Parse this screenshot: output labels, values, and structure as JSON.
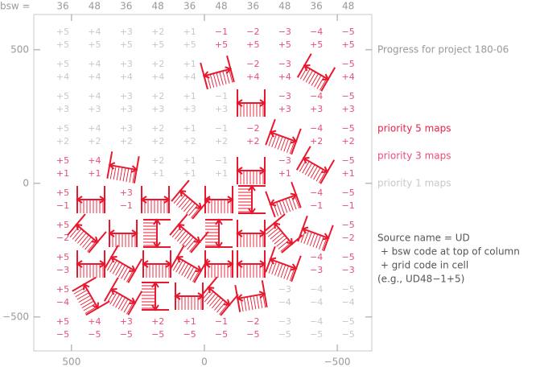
{
  "chart_data": {
    "type": "grid-map",
    "bsw_label": "bsw =",
    "column_codes": [
      36,
      48,
      36,
      48,
      36,
      48,
      36,
      48,
      36,
      48
    ],
    "xlim": [
      642,
      -630
    ],
    "ylim": [
      -627,
      632
    ],
    "xticks": [
      500,
      0,
      {
        "value": -500,
        "label": "−500"
      }
    ],
    "yticks": [
      {
        "value": -500,
        "label": "−500"
      },
      0,
      500
    ],
    "legend": [
      {
        "text": "Progress for project 180-06",
        "color": "#999999"
      },
      {
        "text": "priority 5 maps",
        "color": "#e8204a"
      },
      {
        "text": "priority 3 maps",
        "color": "#ec4c78"
      },
      {
        "text": "priority 1 maps",
        "color": "#c8c8c8"
      }
    ],
    "notes": [
      "Source name = UD",
      " + bsw code at top of column",
      " + grid code in cell",
      "(e.g., UD48−1+5)"
    ],
    "cells": [
      [
        {
          "lines": [
            "+5",
            "+5"
          ],
          "color": "#c8c8c8"
        },
        {
          "lines": [
            "+4",
            "+5"
          ],
          "color": "#c8c8c8"
        },
        {
          "lines": [
            "+3",
            "+5"
          ],
          "color": "#c8c8c8"
        },
        {
          "lines": [
            "+2",
            "+5"
          ],
          "color": "#c8c8c8"
        },
        {
          "lines": [
            "+1",
            "+5"
          ],
          "color": "#c8c8c8"
        },
        {
          "lines": [
            "−1",
            "+5"
          ],
          "color": "#ec4c78"
        },
        {
          "lines": [
            "−2",
            "+5"
          ],
          "color": "#ec4c78"
        },
        {
          "lines": [
            "−3",
            "+5"
          ],
          "color": "#ec4c78"
        },
        {
          "lines": [
            "−4",
            "+5"
          ],
          "color": "#ec4c78"
        },
        {
          "lines": [
            "−5",
            "+5"
          ],
          "color": "#ec4c78"
        }
      ],
      [
        {
          "lines": [
            "+5",
            "+4"
          ],
          "color": "#c8c8c8"
        },
        {
          "lines": [
            "+4",
            "+4"
          ],
          "color": "#c8c8c8"
        },
        {
          "lines": [
            "+3",
            "+4"
          ],
          "color": "#c8c8c8"
        },
        {
          "lines": [
            "+2",
            "+4"
          ],
          "color": "#c8c8c8"
        },
        {
          "lines": [
            "+1",
            "+4"
          ],
          "color": "#c8c8c8"
        },
        null,
        {
          "lines": [
            "−2",
            "+4"
          ],
          "color": "#ec4c78"
        },
        {
          "lines": [
            "−3",
            "+4"
          ],
          "color": "#ec4c78"
        },
        null,
        {
          "lines": [
            "−5",
            "+4"
          ],
          "color": "#ec4c78"
        }
      ],
      [
        {
          "lines": [
            "+5",
            "+3"
          ],
          "color": "#c8c8c8"
        },
        {
          "lines": [
            "+4",
            "+3"
          ],
          "color": "#c8c8c8"
        },
        {
          "lines": [
            "+3",
            "+3"
          ],
          "color": "#c8c8c8"
        },
        {
          "lines": [
            "+2",
            "+3"
          ],
          "color": "#c8c8c8"
        },
        {
          "lines": [
            "+1",
            "+3"
          ],
          "color": "#c8c8c8"
        },
        {
          "lines": [
            "−1",
            "+3"
          ],
          "color": "#c8c8c8"
        },
        null,
        {
          "lines": [
            "−3",
            "+3"
          ],
          "color": "#ec4c78"
        },
        {
          "lines": [
            "−4",
            "+3"
          ],
          "color": "#ec4c78"
        },
        {
          "lines": [
            "−5",
            "+3"
          ],
          "color": "#ec4c78"
        }
      ],
      [
        {
          "lines": [
            "+5",
            "+2"
          ],
          "color": "#c8c8c8"
        },
        {
          "lines": [
            "+4",
            "+2"
          ],
          "color": "#c8c8c8"
        },
        {
          "lines": [
            "+3",
            "+2"
          ],
          "color": "#c8c8c8"
        },
        {
          "lines": [
            "+2",
            "+2"
          ],
          "color": "#c8c8c8"
        },
        {
          "lines": [
            "+1",
            "+2"
          ],
          "color": "#c8c8c8"
        },
        {
          "lines": [
            "−1",
            "+2"
          ],
          "color": "#c8c8c8"
        },
        {
          "lines": [
            "−2",
            "+2"
          ],
          "color": "#ec4c78"
        },
        null,
        {
          "lines": [
            "−4",
            "+2"
          ],
          "color": "#ec4c78"
        },
        {
          "lines": [
            "−5",
            "+2"
          ],
          "color": "#ec4c78"
        }
      ],
      [
        {
          "lines": [
            "+5",
            "+1"
          ],
          "color": "#ec4c78"
        },
        {
          "lines": [
            "+4",
            "+1"
          ],
          "color": "#ec4c78"
        },
        null,
        {
          "lines": [
            "+2",
            "+1"
          ],
          "color": "#c8c8c8"
        },
        {
          "lines": [
            "+1",
            "+1"
          ],
          "color": "#c8c8c8"
        },
        {
          "lines": [
            "−1",
            "+1"
          ],
          "color": "#c8c8c8"
        },
        null,
        {
          "lines": [
            "−3",
            "+1"
          ],
          "color": "#ec4c78"
        },
        null,
        {
          "lines": [
            "−5",
            "+1"
          ],
          "color": "#ec4c78"
        }
      ],
      [
        {
          "lines": [
            "+5",
            "−1"
          ],
          "color": "#ec4c78"
        },
        null,
        {
          "lines": [
            "+3",
            "−1"
          ],
          "color": "#ec4c78"
        },
        null,
        null,
        null,
        null,
        null,
        {
          "lines": [
            "−4",
            "−1"
          ],
          "color": "#ec4c78"
        },
        {
          "lines": [
            "−5",
            "−1"
          ],
          "color": "#ec4c78"
        }
      ],
      [
        {
          "lines": [
            "+5",
            "−2"
          ],
          "color": "#ec4c78"
        },
        null,
        null,
        null,
        null,
        null,
        null,
        null,
        null,
        {
          "lines": [
            "−5",
            "−2"
          ],
          "color": "#ec4c78"
        }
      ],
      [
        {
          "lines": [
            "+5",
            "−3"
          ],
          "color": "#ec4c78"
        },
        null,
        null,
        null,
        null,
        null,
        null,
        null,
        {
          "lines": [
            "−4",
            "−3"
          ],
          "color": "#ec4c78"
        },
        {
          "lines": [
            "−5",
            "−3"
          ],
          "color": "#ec4c78"
        }
      ],
      [
        {
          "lines": [
            "+5",
            "−4"
          ],
          "color": "#ec4c78"
        },
        null,
        null,
        null,
        null,
        null,
        null,
        {
          "lines": [
            "−3",
            "−4"
          ],
          "color": "#c8c8c8"
        },
        {
          "lines": [
            "−4",
            "−4"
          ],
          "color": "#c8c8c8"
        },
        {
          "lines": [
            "−5",
            "−4"
          ],
          "color": "#c8c8c8"
        }
      ],
      [
        {
          "lines": [
            "+5",
            "−5"
          ],
          "color": "#ec4c78"
        },
        {
          "lines": [
            "+4",
            "−5"
          ],
          "color": "#ec4c78"
        },
        {
          "lines": [
            "+3",
            "−5"
          ],
          "color": "#ec4c78"
        },
        {
          "lines": [
            "+2",
            "−5"
          ],
          "color": "#ec4c78"
        },
        {
          "lines": [
            "+1",
            "−5"
          ],
          "color": "#ec4c78"
        },
        {
          "lines": [
            "−1",
            "−5"
          ],
          "color": "#ec4c78"
        },
        {
          "lines": [
            "−2",
            "−5"
          ],
          "color": "#ec4c78"
        },
        {
          "lines": [
            "−3",
            "−5"
          ],
          "color": "#c8c8c8"
        },
        {
          "lines": [
            "−4",
            "−5"
          ],
          "color": "#c8c8c8"
        },
        {
          "lines": [
            "−5",
            "−5"
          ],
          "color": "#c8c8c8"
        }
      ]
    ]
  }
}
